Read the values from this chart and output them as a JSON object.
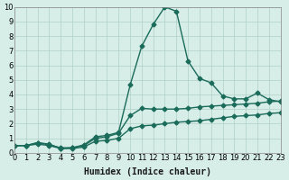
{
  "xlabel": "Humidex (Indice chaleur)",
  "background_color": "#d6ede8",
  "grid_color": "#b0cfc8",
  "line_color": "#1a6b5a",
  "xlim": [
    0,
    23
  ],
  "ylim": [
    0,
    10
  ],
  "xticks": [
    0,
    1,
    2,
    3,
    4,
    5,
    6,
    7,
    8,
    9,
    10,
    11,
    12,
    13,
    14,
    15,
    16,
    17,
    18,
    19,
    20,
    21,
    22,
    23
  ],
  "yticks": [
    0,
    1,
    2,
    3,
    4,
    5,
    6,
    7,
    8,
    9,
    10
  ],
  "line1_x": [
    0,
    1,
    2,
    3,
    4,
    5,
    6,
    7,
    8,
    9,
    10,
    11,
    12,
    13,
    14,
    15,
    16,
    17,
    18,
    19,
    20,
    21,
    22,
    23
  ],
  "line1_y": [
    0.5,
    0.5,
    0.7,
    0.6,
    0.3,
    0.35,
    0.55,
    1.1,
    1.2,
    1.4,
    4.65,
    7.3,
    8.8,
    10.0,
    9.7,
    6.3,
    5.1,
    4.8,
    3.9,
    3.7,
    3.7,
    4.1,
    3.65,
    3.5
  ],
  "line2_x": [
    0,
    1,
    2,
    3,
    4,
    5,
    6,
    7,
    8,
    9,
    10,
    11,
    12,
    13,
    14,
    15,
    16,
    17,
    18,
    19,
    20,
    21,
    22,
    23
  ],
  "line2_y": [
    0.5,
    0.5,
    0.7,
    0.55,
    0.35,
    0.35,
    0.5,
    1.0,
    1.1,
    1.35,
    2.55,
    3.05,
    3.0,
    3.0,
    3.0,
    3.05,
    3.15,
    3.2,
    3.25,
    3.3,
    3.35,
    3.4,
    3.5,
    3.55
  ],
  "line3_x": [
    0,
    1,
    2,
    3,
    4,
    5,
    6,
    7,
    8,
    9,
    10,
    11,
    12,
    13,
    14,
    15,
    16,
    17,
    18,
    19,
    20,
    21,
    22,
    23
  ],
  "line3_y": [
    0.5,
    0.5,
    0.6,
    0.5,
    0.3,
    0.3,
    0.4,
    0.8,
    0.85,
    1.0,
    1.65,
    1.85,
    1.9,
    2.0,
    2.1,
    2.15,
    2.2,
    2.3,
    2.4,
    2.5,
    2.55,
    2.6,
    2.7,
    2.75
  ],
  "marker": "D",
  "markersize": 2.5,
  "linewidth": 1.0,
  "tick_fontsize": 6,
  "xlabel_fontsize": 7
}
